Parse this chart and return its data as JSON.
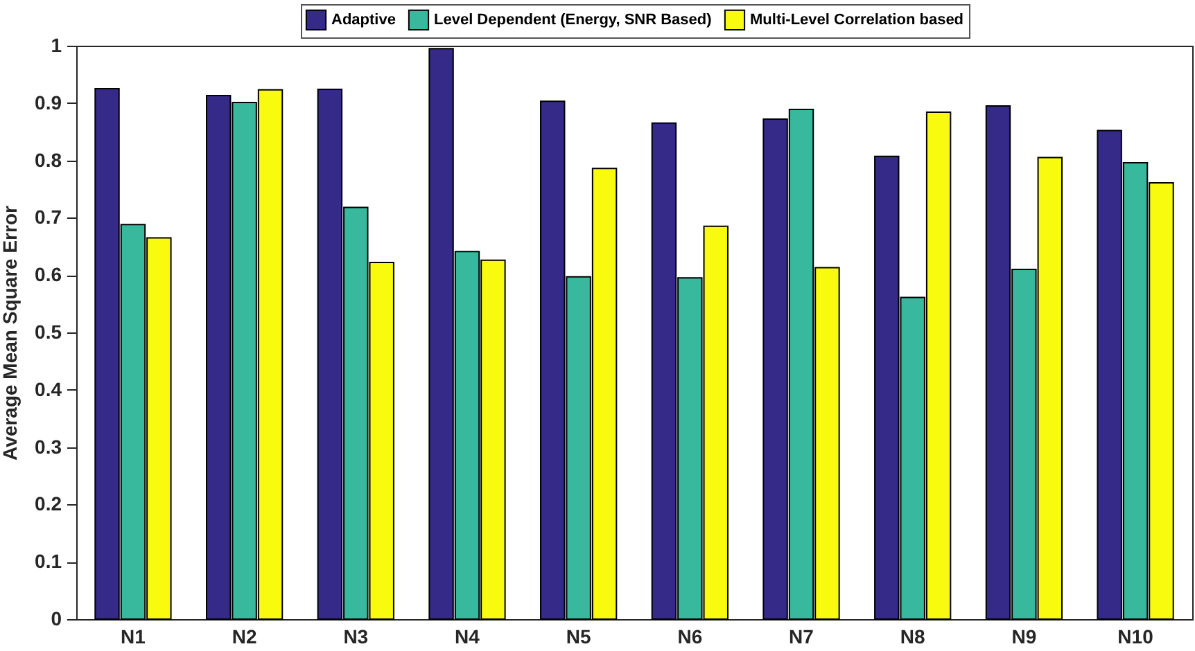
{
  "chart_data": {
    "type": "bar",
    "ylabel": "Average Mean Square Error",
    "categories": [
      "N1",
      "N2",
      "N3",
      "N4",
      "N5",
      "N6",
      "N7",
      "N8",
      "N9",
      "N10"
    ],
    "series": [
      {
        "name": "Adaptive",
        "color": "#352a87",
        "values": [
          0.925,
          0.913,
          0.924,
          0.995,
          0.903,
          0.865,
          0.872,
          0.807,
          0.895,
          0.852
        ]
      },
      {
        "name": "Level Dependent (Energy, SNR Based)",
        "color": "#38b99e",
        "values": [
          0.688,
          0.901,
          0.718,
          0.641,
          0.597,
          0.595,
          0.889,
          0.561,
          0.61,
          0.796
        ]
      },
      {
        "name": "Multi-Level Correlation based",
        "color": "#f9fb0e",
        "values": [
          0.665,
          0.923,
          0.622,
          0.626,
          0.786,
          0.685,
          0.613,
          0.884,
          0.805,
          0.761
        ]
      }
    ],
    "ylim": [
      0,
      1
    ],
    "yticks": [
      0,
      0.1,
      0.2,
      0.3,
      0.4,
      0.5,
      0.6,
      0.7,
      0.8,
      0.9,
      1
    ],
    "grid": false,
    "legend": "top"
  }
}
